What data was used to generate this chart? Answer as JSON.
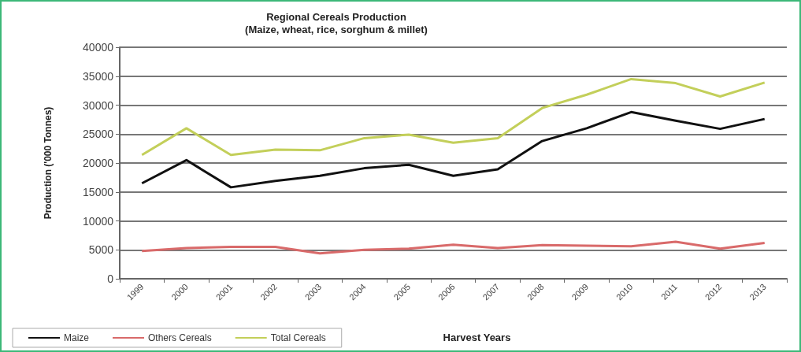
{
  "chart_data": {
    "type": "line",
    "title": "Regional Cereals Production\n(Maize, wheat, rice, sorghum & millet)",
    "xlabel": "Harvest Years",
    "ylabel": "Production ('000 Tonnes)",
    "categories": [
      "1999",
      "2000",
      "2001",
      "2002",
      "2003",
      "2004",
      "2005",
      "2006",
      "2007",
      "2008",
      "2009",
      "2010",
      "2011",
      "2012",
      "2013"
    ],
    "series": [
      {
        "name": "Maize",
        "color": "#111111",
        "values": [
          16500,
          20500,
          15800,
          16900,
          17800,
          19100,
          19700,
          17800,
          18900,
          23800,
          26000,
          28800,
          27300,
          25900,
          27600
        ]
      },
      {
        "name": "Others Cereals",
        "color": "#d96a6a",
        "values": [
          4800,
          5300,
          5500,
          5500,
          4400,
          5000,
          5200,
          5900,
          5300,
          5800,
          5700,
          5600,
          6400,
          5200,
          6200
        ]
      },
      {
        "name": "Total Cereals",
        "color": "#c3cf5a",
        "values": [
          21400,
          26000,
          21400,
          22300,
          22200,
          24300,
          24900,
          23500,
          24300,
          29500,
          31800,
          34500,
          33800,
          31500,
          33900
        ]
      }
    ],
    "ylim": [
      0,
      40000
    ],
    "yticks": [
      0,
      5000,
      10000,
      15000,
      20000,
      25000,
      30000,
      35000,
      40000
    ],
    "grid": "y",
    "legend": "bottom left",
    "marker": "none",
    "line_style": "solid"
  }
}
